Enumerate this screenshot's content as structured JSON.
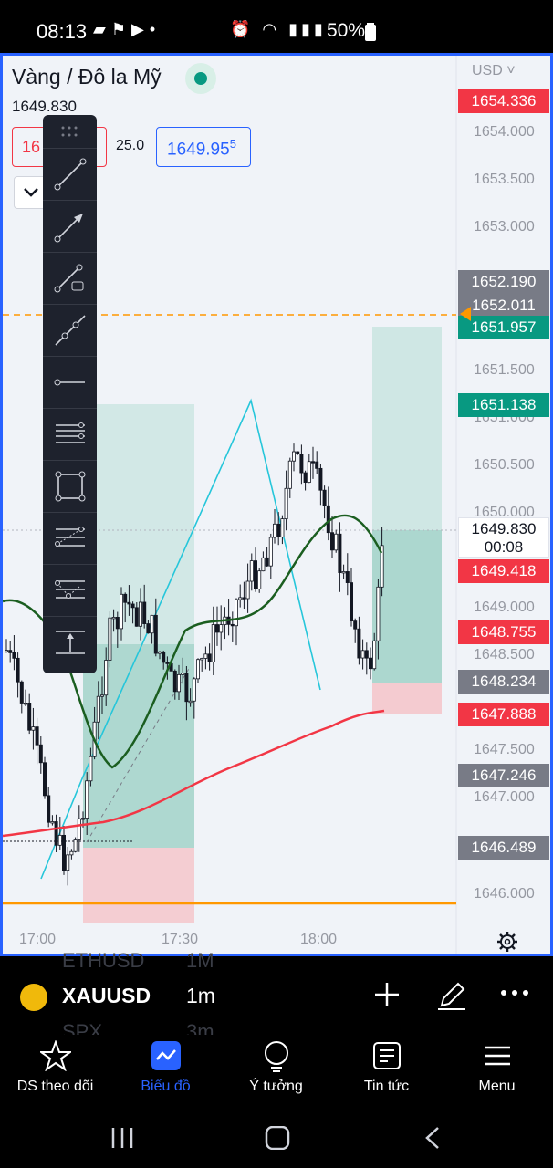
{
  "status_bar": {
    "time": "08:13",
    "battery": "50%"
  },
  "chart": {
    "symbol_title": "Vàng / Đô la Mỹ",
    "last_price": "1649.830",
    "sell_price_partial": "16",
    "spread": "25.0",
    "buy_price_main": "1649.95",
    "buy_price_sup": "5",
    "currency": "USD ˅",
    "price_ticks": [
      "1654.000",
      "1653.500",
      "1653.000",
      "1651.500",
      "1651.000",
      "1650.500",
      "1650.000",
      "1649.000",
      "1648.500",
      "1647.500",
      "1647.000",
      "1646.000"
    ],
    "price_labels": {
      "top_red": "1654.336",
      "grey_1": "1652.190",
      "grey_2": "1652.011",
      "green_1": "1651.957",
      "green_2": "1651.138",
      "current": "1649.830",
      "countdown": "00:08",
      "red_1": "1649.418",
      "red_2": "1648.755",
      "grey_3": "1648.234",
      "red_3": "1647.888",
      "grey_4": "1647.246",
      "grey_5": "1646.489"
    },
    "time_labels": [
      "17:00",
      "17:30",
      "18:00"
    ],
    "colors": {
      "up": "#089981",
      "down": "#f23645",
      "accent": "#2962ff",
      "ma_slow": "#f23645",
      "ma_fast": "#1b5e20",
      "zigzag": "#26c6da",
      "hline": "#ff9800"
    }
  },
  "drawing_toolbar": {
    "tools": [
      "trend-line-icon",
      "arrow-line-icon",
      "info-line-icon",
      "extended-line-icon",
      "horizontal-ray-icon",
      "parallel-channel-icon",
      "rectangle-icon",
      "fib-retracement-icon",
      "fib-extension-icon",
      "vertical-measure-icon"
    ]
  },
  "symbol_bar": {
    "ghost_top": "ETHUSD",
    "ghost_top_interval": "1M",
    "symbol": "XAUUSD",
    "interval": "1m",
    "ghost_bottom": "SPX",
    "ghost_bottom_interval": "3m"
  },
  "bottom_nav": [
    {
      "label": "DS theo dõi",
      "icon": "star-icon"
    },
    {
      "label": "Biểu đồ",
      "icon": "chart-icon",
      "active": true
    },
    {
      "label": "Ý tưởng",
      "icon": "lightbulb-icon"
    },
    {
      "label": "Tin tức",
      "icon": "news-icon"
    },
    {
      "label": "Menu",
      "icon": "menu-icon"
    }
  ]
}
